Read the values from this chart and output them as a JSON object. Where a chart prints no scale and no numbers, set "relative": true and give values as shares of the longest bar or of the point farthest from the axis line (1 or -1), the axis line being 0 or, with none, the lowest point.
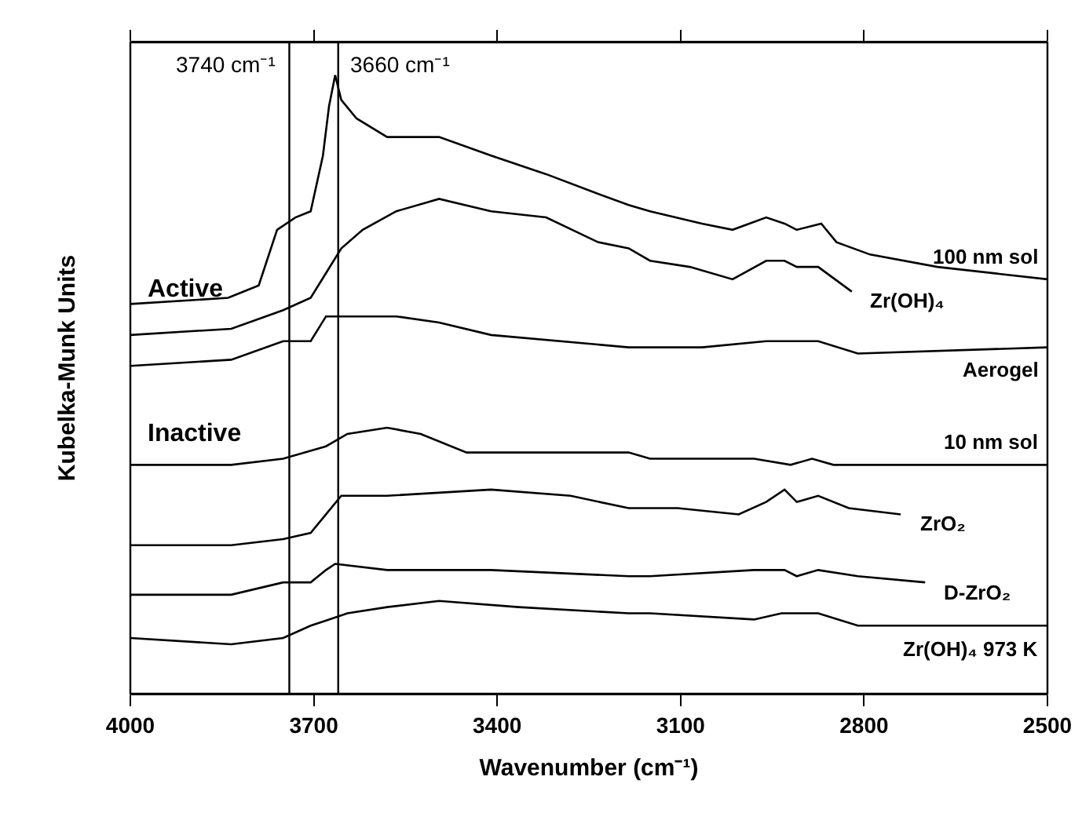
{
  "chart_data": {
    "type": "line",
    "relative": true,
    "xlabel": "Wavenumber (cm⁻¹)",
    "ylabel": "Kubelka-Munk Units",
    "xlim": [
      4000,
      2500
    ],
    "xticks": [
      4000,
      3700,
      3400,
      3100,
      2800,
      2500
    ],
    "grid": false,
    "legend": false,
    "line_style": "solid",
    "marker": "none",
    "annotations": [
      "Active",
      "Inactive"
    ],
    "ref_lines": [
      {
        "axis": "x",
        "value": 3740,
        "label": "3740 cm⁻¹",
        "color": "#000000"
      },
      {
        "axis": "x",
        "value": 3660,
        "label": "3660 cm⁻¹",
        "color": "#000000"
      }
    ],
    "series": [
      {
        "name": "100 nm sol",
        "color": "#000000",
        "x": [
          4000,
          3840,
          3790,
          3760,
          3730,
          3705,
          3685,
          3675,
          3665,
          3655,
          3630,
          3580,
          3495,
          3410,
          3320,
          3240,
          3185,
          3150,
          3065,
          3015,
          2960,
          2930,
          2910,
          2870,
          2845,
          2790,
          2680,
          2500
        ],
        "values": [
          0.63,
          0.64,
          0.66,
          0.75,
          0.77,
          0.78,
          0.87,
          0.95,
          1.0,
          0.96,
          0.93,
          0.9,
          0.9,
          0.87,
          0.84,
          0.81,
          0.79,
          0.78,
          0.76,
          0.75,
          0.77,
          0.76,
          0.75,
          0.76,
          0.73,
          0.71,
          0.69,
          0.67
        ]
      },
      {
        "name": "Zr(OH)₄",
        "color": "#000000",
        "x": [
          4000,
          3835,
          3750,
          3705,
          3680,
          3655,
          3620,
          3565,
          3495,
          3410,
          3320,
          3235,
          3185,
          3150,
          3085,
          3015,
          2960,
          2930,
          2910,
          2875,
          2820
        ],
        "values": [
          0.58,
          0.59,
          0.62,
          0.64,
          0.68,
          0.72,
          0.75,
          0.78,
          0.8,
          0.78,
          0.77,
          0.73,
          0.72,
          0.7,
          0.69,
          0.67,
          0.7,
          0.7,
          0.69,
          0.69,
          0.65
        ]
      },
      {
        "name": "Aerogel",
        "color": "#000000",
        "x": [
          4000,
          3835,
          3750,
          3705,
          3680,
          3645,
          3565,
          3495,
          3410,
          3185,
          3150,
          3065,
          2960,
          2930,
          2875,
          2810,
          2500
        ],
        "values": [
          0.53,
          0.54,
          0.57,
          0.57,
          0.61,
          0.61,
          0.61,
          0.6,
          0.58,
          0.56,
          0.56,
          0.56,
          0.57,
          0.57,
          0.57,
          0.55,
          0.56
        ]
      },
      {
        "name": "10 nm sol",
        "color": "#000000",
        "x": [
          4000,
          3835,
          3750,
          3680,
          3645,
          3580,
          3525,
          3450,
          3365,
          3185,
          3150,
          2980,
          2920,
          2885,
          2850,
          2500
        ],
        "values": [
          0.37,
          0.37,
          0.38,
          0.4,
          0.42,
          0.43,
          0.42,
          0.39,
          0.39,
          0.39,
          0.38,
          0.38,
          0.37,
          0.38,
          0.37,
          0.37
        ]
      },
      {
        "name": "ZrO₂",
        "color": "#000000",
        "x": [
          4000,
          3835,
          3750,
          3705,
          3680,
          3655,
          3580,
          3410,
          3280,
          3185,
          3105,
          3005,
          2960,
          2930,
          2910,
          2875,
          2825,
          2740
        ],
        "values": [
          0.24,
          0.24,
          0.25,
          0.26,
          0.29,
          0.32,
          0.32,
          0.33,
          0.32,
          0.3,
          0.3,
          0.29,
          0.31,
          0.33,
          0.31,
          0.32,
          0.3,
          0.29
        ]
      },
      {
        "name": "D-ZrO₂",
        "color": "#000000",
        "x": [
          4000,
          3835,
          3750,
          3705,
          3680,
          3665,
          3580,
          3410,
          3185,
          3150,
          2980,
          2930,
          2910,
          2875,
          2810,
          2700
        ],
        "values": [
          0.16,
          0.16,
          0.18,
          0.18,
          0.2,
          0.21,
          0.2,
          0.2,
          0.19,
          0.19,
          0.2,
          0.2,
          0.19,
          0.2,
          0.19,
          0.18
        ]
      },
      {
        "name": "Zr(OH)₄ 973 K",
        "color": "#000000",
        "x": [
          4000,
          3835,
          3750,
          3705,
          3675,
          3645,
          3580,
          3495,
          3365,
          3185,
          3150,
          2980,
          2935,
          2910,
          2875,
          2810,
          2500
        ],
        "values": [
          0.09,
          0.08,
          0.09,
          0.11,
          0.12,
          0.13,
          0.14,
          0.15,
          0.14,
          0.13,
          0.13,
          0.12,
          0.13,
          0.13,
          0.13,
          0.11,
          0.11
        ]
      }
    ]
  }
}
